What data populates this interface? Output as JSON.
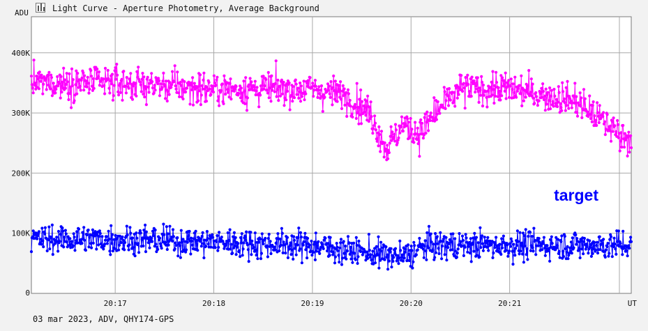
{
  "window": {
    "title": "Light Curve - Aperture Photometry, Average Background"
  },
  "footer": {
    "text": "03 mar 2023, ADV, QHY174-GPS"
  },
  "colors": {
    "comparison": "#ff00ff",
    "target": "#0000ff",
    "grid": "#a8a8a8",
    "plot_bg": "#ffffff",
    "page_bg": "#f2f2f2"
  },
  "chart_data": {
    "type": "line",
    "title": "Light Curve - Aperture Photometry, Average Background",
    "ylabel": "ADU",
    "xlabel": "UT",
    "ylim": [
      0,
      460000
    ],
    "xlim": [
      "20:16:09",
      "20:22:14"
    ],
    "x_ticks": [
      "20:17",
      "20:18",
      "20:19",
      "20:20",
      "20:21"
    ],
    "y_ticks": [
      {
        "value": 100000,
        "label": "100K"
      },
      {
        "value": 200000,
        "label": "200K"
      },
      {
        "value": 300000,
        "label": "300K"
      },
      {
        "value": 400000,
        "label": "400K"
      }
    ],
    "y_zero_label": "0",
    "grid": true,
    "markers": true,
    "annotations": [
      {
        "text": "target",
        "color": "#0000ff",
        "position": "right-center"
      }
    ],
    "series": [
      {
        "color": "#ff00ff",
        "trend_time": [
          "20:16:09",
          "20:17:00",
          "20:18:00",
          "20:19:00",
          "20:19:20",
          "20:19:35",
          "20:19:45",
          "20:19:55",
          "20:20:05",
          "20:20:15",
          "20:20:30",
          "20:21:00",
          "20:21:40",
          "20:22:10"
        ],
        "trend_mean": [
          350000,
          350000,
          340000,
          340000,
          330000,
          300000,
          240000,
          280000,
          265000,
          300000,
          340000,
          340000,
          320000,
          260000
        ],
        "scatter": 25000
      },
      {
        "name": "target",
        "color": "#0000ff",
        "trend_time": [
          "20:16:09",
          "20:17:00",
          "20:18:00",
          "20:19:00",
          "20:19:40",
          "20:19:55",
          "20:20:10",
          "20:21:00",
          "20:22:10"
        ],
        "trend_mean": [
          90000,
          90000,
          85000,
          80000,
          65000,
          60000,
          80000,
          80000,
          80000
        ],
        "scatter": 22000
      }
    ]
  }
}
